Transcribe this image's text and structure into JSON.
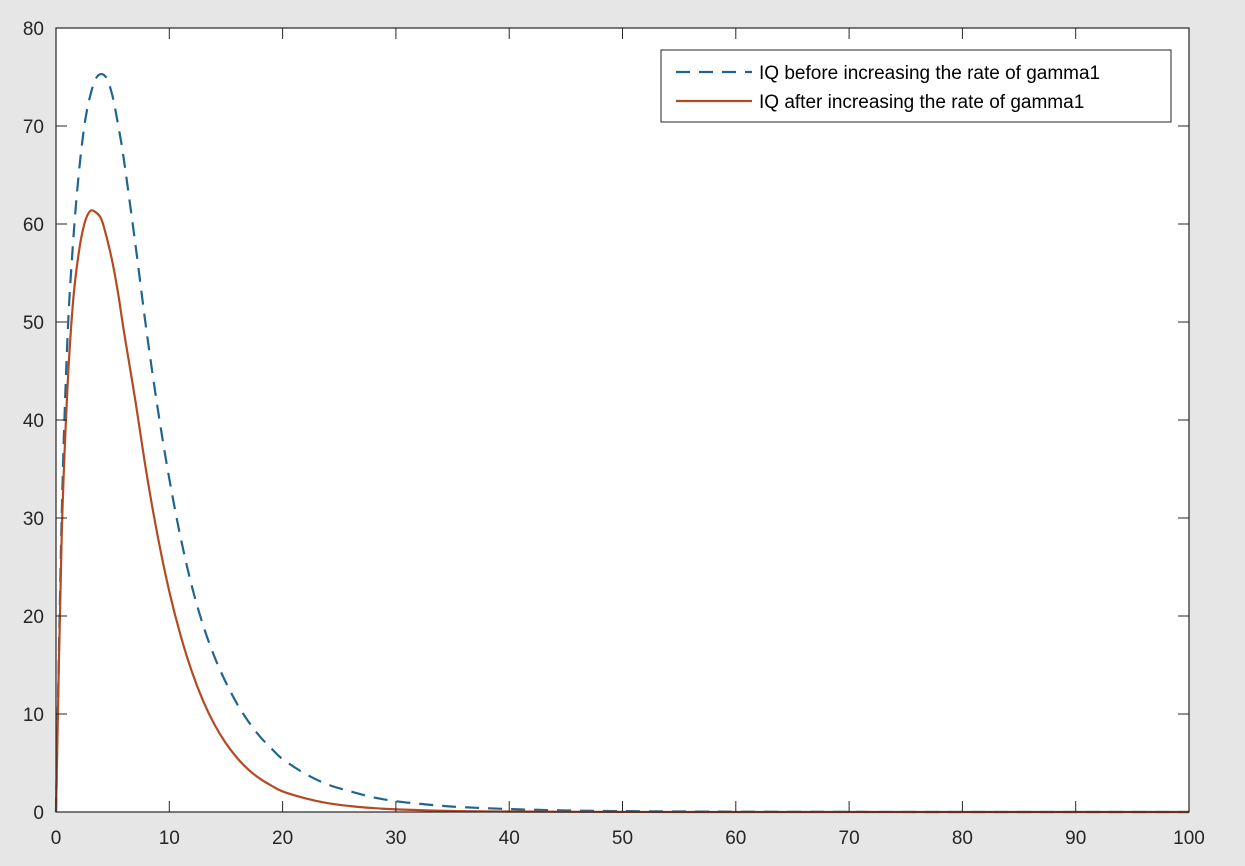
{
  "figure": {
    "background": "#e6e6e6",
    "axes_background": "#ffffff"
  },
  "chart_data": {
    "type": "line",
    "title": "",
    "xlabel": "",
    "ylabel": "",
    "xlim": [
      0,
      100
    ],
    "ylim": [
      0,
      80
    ],
    "xticks": [
      0,
      10,
      20,
      30,
      40,
      50,
      60,
      70,
      80,
      90,
      100
    ],
    "yticks": [
      0,
      10,
      20,
      30,
      40,
      50,
      60,
      70,
      80
    ],
    "grid": false,
    "legend_position": "top-right",
    "series": [
      {
        "name": "IQ before increasing the rate of gamma1",
        "color": "#1f6591",
        "line_style": "dashed",
        "x": [
          0,
          0.5,
          1,
          1.5,
          2,
          2.5,
          3,
          3.5,
          4,
          4.5,
          5,
          5.5,
          6,
          7,
          8,
          9,
          10,
          11,
          12,
          13,
          14,
          15,
          16,
          17,
          18,
          19,
          20,
          22,
          24,
          26,
          28,
          30,
          32,
          35,
          40,
          45,
          50,
          60,
          70,
          80,
          90,
          100
        ],
        "y": [
          0,
          30,
          48,
          58,
          65,
          70,
          73,
          74.8,
          75.3,
          74.8,
          73,
          70,
          66.5,
          58,
          49,
          41,
          34,
          28,
          23,
          19,
          15.8,
          13.2,
          11,
          9.2,
          7.7,
          6.5,
          5.4,
          3.9,
          2.8,
          2.1,
          1.5,
          1.1,
          0.85,
          0.55,
          0.3,
          0.16,
          0.09,
          0.03,
          0.01,
          0,
          0,
          0
        ]
      },
      {
        "name": "IQ after increasing the rate of gamma1",
        "color": "#b34a24",
        "line_style": "solid",
        "x": [
          0,
          0.5,
          1,
          1.5,
          2,
          2.5,
          3,
          3.5,
          4,
          4.5,
          5,
          5.5,
          6,
          7,
          8,
          9,
          10,
          11,
          12,
          13,
          14,
          15,
          16,
          17,
          18,
          19,
          20,
          22,
          24,
          26,
          28,
          30,
          35,
          40,
          50,
          60,
          70,
          80,
          90,
          100
        ],
        "y": [
          0,
          28,
          43,
          52,
          57,
          60,
          61.3,
          61.2,
          60.5,
          58.5,
          56,
          52.8,
          49,
          42,
          34.5,
          28,
          22.5,
          18,
          14.3,
          11.3,
          8.9,
          7,
          5.5,
          4.3,
          3.4,
          2.7,
          2.1,
          1.4,
          0.9,
          0.6,
          0.4,
          0.27,
          0.1,
          0.05,
          0.01,
          0,
          0,
          0,
          0,
          0
        ]
      }
    ]
  }
}
